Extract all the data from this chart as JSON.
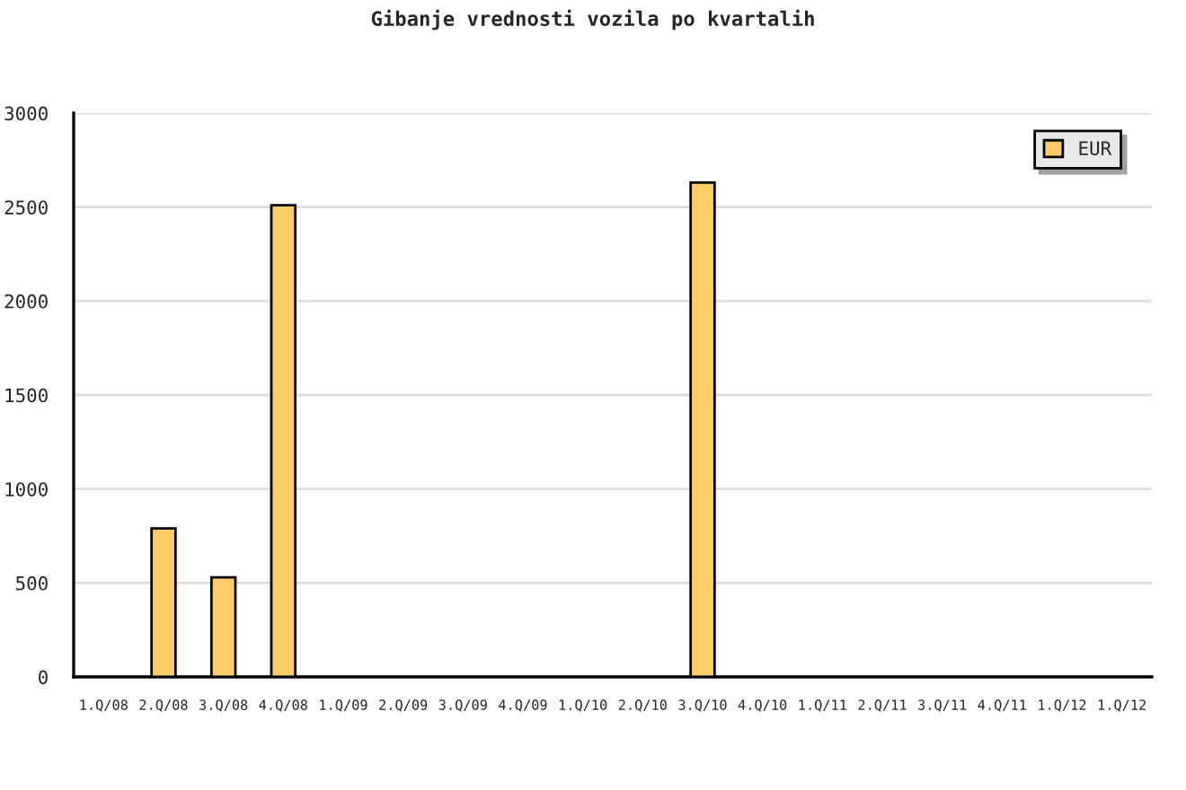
{
  "chart_data": {
    "type": "bar",
    "title": "Gibanje vrednosti vozila po kvartalih",
    "categories": [
      "1.Q/08",
      "2.Q/08",
      "3.Q/08",
      "4.Q/08",
      "1.Q/09",
      "2.Q/09",
      "3.Q/09",
      "4.Q/09",
      "1.Q/10",
      "2.Q/10",
      "3.Q/10",
      "4.Q/10",
      "1.Q/11",
      "2.Q/11",
      "3.Q/11",
      "4.Q/11",
      "1.Q/12",
      "1.Q/12"
    ],
    "series": [
      {
        "name": "EUR",
        "color": "#ffcc66",
        "values": [
          null,
          790,
          530,
          2510,
          null,
          null,
          null,
          null,
          null,
          null,
          2630,
          null,
          null,
          null,
          null,
          null,
          null,
          null
        ]
      }
    ],
    "ylim": [
      0,
      3000
    ],
    "yticks": [
      0,
      500,
      1000,
      1500,
      2000,
      2500,
      3000
    ],
    "grid": "y",
    "legend": "top right"
  }
}
